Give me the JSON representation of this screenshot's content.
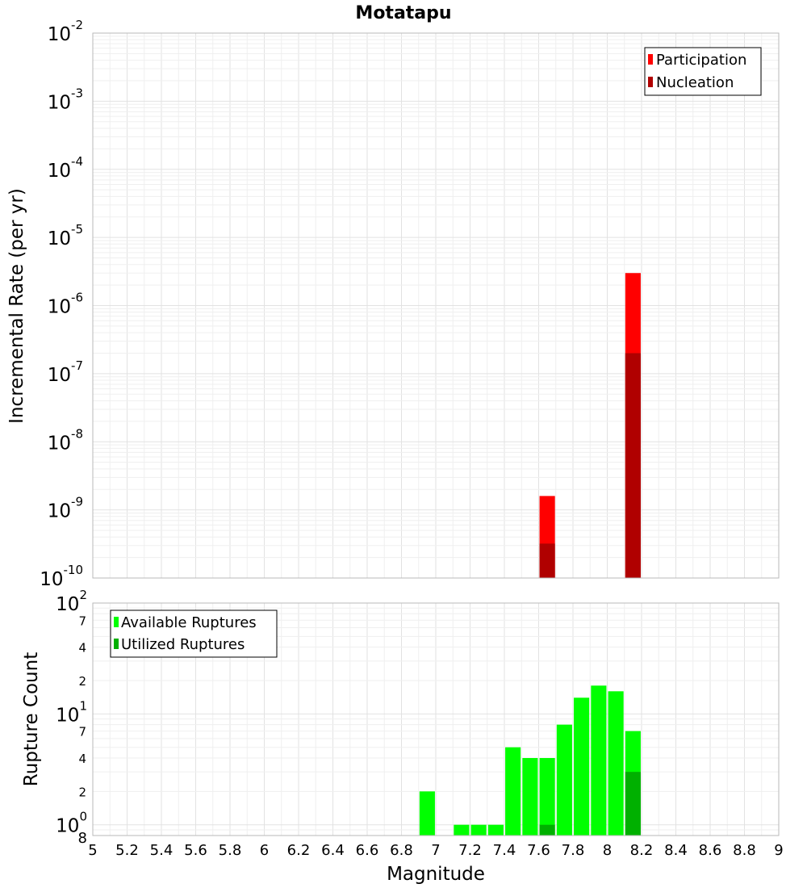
{
  "chart_data": [
    {
      "type": "bar",
      "title": "Motatapu",
      "ylabel": "Incremental Rate (per yr)",
      "xlabel": "",
      "y_scale": "log",
      "xlim": [
        5,
        9
      ],
      "ylim": [
        1e-10,
        0.01
      ],
      "y_ticks": [
        {
          "base": "10",
          "exp": "-10"
        },
        {
          "base": "10",
          "exp": "-9"
        },
        {
          "base": "10",
          "exp": "-8"
        },
        {
          "base": "10",
          "exp": "-7"
        },
        {
          "base": "10",
          "exp": "-6"
        },
        {
          "base": "10",
          "exp": "-5"
        },
        {
          "base": "10",
          "exp": "-4"
        },
        {
          "base": "10",
          "exp": "-3"
        },
        {
          "base": "10",
          "exp": "-2"
        }
      ],
      "bar_width": 0.09,
      "grid": true,
      "legend_position": "top-right",
      "series": [
        {
          "name": "Participation",
          "color": "#ff0000",
          "x": [
            7.65,
            8.15
          ],
          "values": [
            1.6e-09,
            3e-06
          ]
        },
        {
          "name": "Nucleation",
          "color": "#b00000",
          "x": [
            7.65,
            8.15
          ],
          "values": [
            3.2e-10,
            2e-07
          ]
        }
      ]
    },
    {
      "type": "bar",
      "title": "",
      "ylabel": "Rupture Count",
      "xlabel": "Magnitude",
      "y_scale": "log",
      "xlim": [
        5,
        9
      ],
      "ylim": [
        0.8,
        100
      ],
      "x_tick_labels": [
        "5",
        "5.2",
        "5.4",
        "5.6",
        "5.8",
        "6",
        "6.2",
        "6.4",
        "6.6",
        "6.8",
        "7",
        "7.2",
        "7.4",
        "7.6",
        "7.8",
        "8",
        "8.2",
        "8.4",
        "8.6",
        "8.8",
        "9"
      ],
      "y_ticks": [
        {
          "value": 1,
          "base": "10",
          "exp": "0"
        },
        {
          "value": 2,
          "label": "2"
        },
        {
          "value": 4,
          "label": "4"
        },
        {
          "value": 7,
          "label": "7"
        },
        {
          "value": 10,
          "base": "10",
          "exp": "1"
        },
        {
          "value": 20,
          "label": "2"
        },
        {
          "value": 40,
          "label": "4"
        },
        {
          "value": 70,
          "label": "7"
        },
        {
          "value": 100,
          "base": "10",
          "exp": "2"
        }
      ],
      "y_min_label": "8",
      "bar_width": 0.09,
      "grid": true,
      "legend_position": "top-left",
      "series": [
        {
          "name": "Available Ruptures",
          "color": "#00ff00",
          "x": [
            6.95,
            7.15,
            7.25,
            7.35,
            7.45,
            7.55,
            7.65,
            7.75,
            7.85,
            7.95,
            8.05,
            8.15
          ],
          "values": [
            2,
            1,
            1,
            1,
            5,
            4,
            4,
            8,
            14,
            18,
            16,
            7
          ]
        },
        {
          "name": "Utilized Ruptures",
          "color": "#00b000",
          "x": [
            7.65,
            8.15
          ],
          "values": [
            1,
            3
          ]
        }
      ]
    }
  ]
}
